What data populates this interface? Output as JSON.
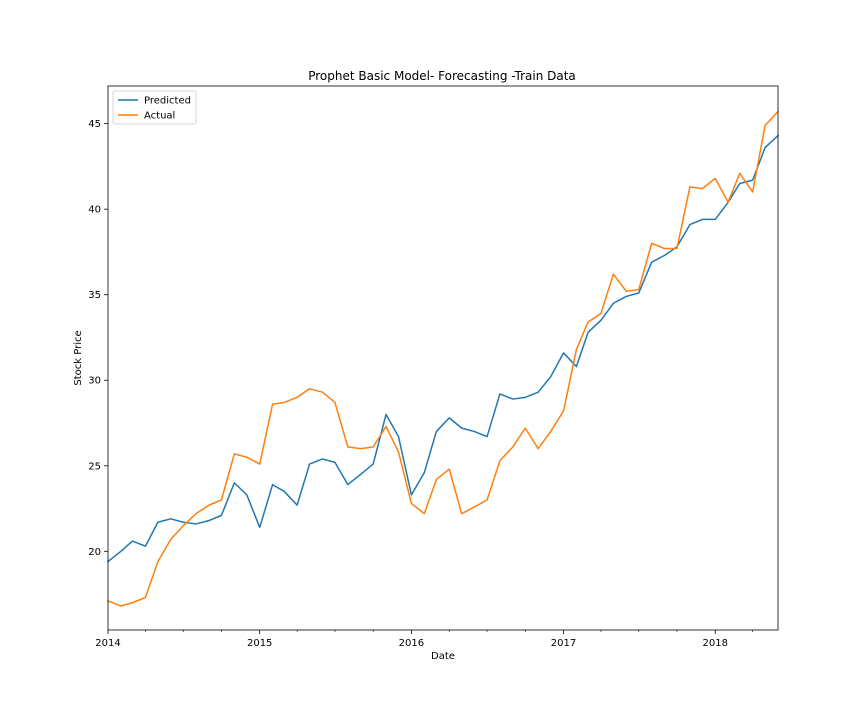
{
  "chart_data": {
    "type": "line",
    "title": "Prophet Basic Model- Forecasting -Train Data",
    "xlabel": "Date",
    "ylabel": "Stock Price",
    "xlim": [
      "2014-01-01",
      "2018-06-01"
    ],
    "ylim": [
      15.4,
      47.2
    ],
    "x_ticks": [
      {
        "date": "2014-01-01",
        "label": "2014"
      },
      {
        "date": "2015-01-01",
        "label": "2015"
      },
      {
        "date": "2016-01-01",
        "label": "2016"
      },
      {
        "date": "2017-01-01",
        "label": "2017"
      },
      {
        "date": "2018-01-01",
        "label": "2018"
      }
    ],
    "y_ticks": [
      20,
      25,
      30,
      35,
      40,
      45
    ],
    "grid": false,
    "legend_position": "top-left",
    "x": [
      "2014-01",
      "2014-02",
      "2014-03",
      "2014-04",
      "2014-05",
      "2014-06",
      "2014-07",
      "2014-08",
      "2014-09",
      "2014-10",
      "2014-11",
      "2014-12",
      "2015-01",
      "2015-02",
      "2015-03",
      "2015-04",
      "2015-05",
      "2015-06",
      "2015-07",
      "2015-08",
      "2015-09",
      "2015-10",
      "2015-11",
      "2015-12",
      "2016-01",
      "2016-02",
      "2016-03",
      "2016-04",
      "2016-05",
      "2016-06",
      "2016-07",
      "2016-08",
      "2016-09",
      "2016-10",
      "2016-11",
      "2016-12",
      "2017-01",
      "2017-02",
      "2017-03",
      "2017-04",
      "2017-05",
      "2017-06",
      "2017-07",
      "2017-08",
      "2017-09",
      "2017-10",
      "2017-11",
      "2017-12",
      "2018-01",
      "2018-02",
      "2018-03",
      "2018-04",
      "2018-05",
      "2018-06"
    ],
    "series": [
      {
        "name": "Predicted",
        "color": "#1f77b4",
        "values": [
          19.4,
          20.0,
          20.6,
          20.3,
          21.7,
          21.9,
          21.7,
          21.6,
          21.8,
          22.1,
          24.0,
          23.3,
          21.4,
          23.9,
          23.5,
          22.7,
          25.1,
          25.4,
          25.2,
          23.9,
          24.5,
          25.1,
          28.0,
          26.7,
          23.3,
          24.6,
          27.0,
          27.8,
          27.2,
          27.0,
          26.7,
          29.2,
          28.9,
          29.0,
          29.3,
          30.2,
          31.6,
          30.8,
          32.8,
          33.5,
          34.5,
          34.9,
          35.1,
          36.9,
          37.3,
          37.8,
          39.1,
          39.4,
          39.4,
          40.4,
          41.5,
          41.7,
          43.6,
          44.3
        ]
      },
      {
        "name": "Actual",
        "color": "#ff7f0e",
        "values": [
          17.1,
          16.8,
          17.0,
          17.3,
          19.4,
          20.7,
          21.5,
          22.2,
          22.7,
          23.0,
          25.7,
          25.5,
          25.1,
          28.6,
          28.7,
          29.0,
          29.5,
          29.3,
          28.7,
          26.1,
          26.0,
          26.1,
          27.3,
          25.8,
          22.8,
          22.2,
          24.2,
          24.8,
          22.2,
          22.6,
          23.0,
          25.3,
          26.1,
          27.2,
          26.0,
          27.0,
          28.2,
          31.8,
          33.4,
          33.9,
          36.2,
          35.2,
          35.3,
          38.0,
          37.7,
          37.7,
          41.3,
          41.2,
          41.8,
          40.4,
          42.1,
          41.0,
          44.9,
          45.7
        ]
      }
    ]
  }
}
